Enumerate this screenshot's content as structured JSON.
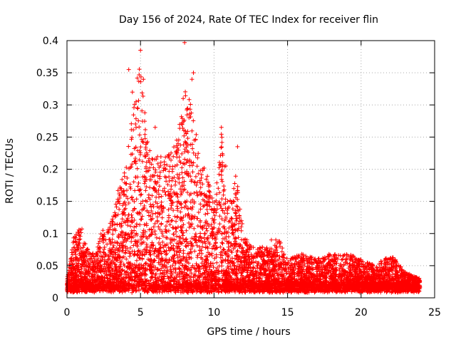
{
  "chart_data": {
    "type": "scatter",
    "title": "Day 156 of 2024, Rate Of TEC Index for receiver flin",
    "xlabel": "GPS time / hours",
    "ylabel": "ROTI / TECUs",
    "xlim": [
      0,
      25
    ],
    "ylim": [
      0,
      0.4
    ],
    "grid": true,
    "marker": "+",
    "color": "#ff0000",
    "x_ticks": [
      {
        "value": 0,
        "label": "0"
      },
      {
        "value": 5,
        "label": "5"
      },
      {
        "value": 10,
        "label": "10"
      },
      {
        "value": 15,
        "label": "15"
      },
      {
        "value": 20,
        "label": "20"
      },
      {
        "value": 25,
        "label": "25"
      }
    ],
    "y_ticks": [
      {
        "value": 0,
        "label": "0"
      },
      {
        "value": 0.05,
        "label": "0.05"
      },
      {
        "value": 0.1,
        "label": "0.1"
      },
      {
        "value": 0.15,
        "label": "0.15"
      },
      {
        "value": 0.2,
        "label": "0.2"
      },
      {
        "value": 0.25,
        "label": "0.25"
      },
      {
        "value": 0.3,
        "label": "0.3"
      },
      {
        "value": 0.35,
        "label": "0.35"
      },
      {
        "value": 0.4,
        "label": "0.4"
      }
    ],
    "series": [
      {
        "name": "ROTI",
        "envelope": [
          [
            0,
            0.035
          ],
          [
            0.5,
            0.1
          ],
          [
            1,
            0.11
          ],
          [
            1.5,
            0.07
          ],
          [
            2,
            0.07
          ],
          [
            2.5,
            0.12
          ],
          [
            3,
            0.12
          ],
          [
            3.5,
            0.17
          ],
          [
            4,
            0.2
          ],
          [
            4.5,
            0.3
          ],
          [
            5,
            0.38
          ],
          [
            5.5,
            0.25
          ],
          [
            6,
            0.22
          ],
          [
            6.5,
            0.22
          ],
          [
            7,
            0.23
          ],
          [
            7.5,
            0.25
          ],
          [
            8,
            0.33
          ],
          [
            8.5,
            0.3
          ],
          [
            9,
            0.22
          ],
          [
            9.5,
            0.2
          ],
          [
            10,
            0.14
          ],
          [
            10.5,
            0.26
          ],
          [
            11,
            0.14
          ],
          [
            11.5,
            0.2
          ],
          [
            12,
            0.1
          ],
          [
            12.5,
            0.08
          ],
          [
            13,
            0.08
          ],
          [
            13.5,
            0.08
          ],
          [
            14,
            0.08
          ],
          [
            14.5,
            0.09
          ],
          [
            15,
            0.06
          ],
          [
            16,
            0.07
          ],
          [
            17,
            0.06
          ],
          [
            18,
            0.07
          ],
          [
            19,
            0.07
          ],
          [
            20,
            0.06
          ],
          [
            21,
            0.05
          ],
          [
            22,
            0.07
          ],
          [
            23,
            0.04
          ],
          [
            24,
            0.03
          ]
        ],
        "outliers": [
          [
            5,
            0.385
          ],
          [
            8,
            0.397
          ],
          [
            8.6,
            0.35
          ],
          [
            4.2,
            0.355
          ],
          [
            4.45,
            0.32
          ],
          [
            5.2,
            0.34
          ],
          [
            8.5,
            0.34
          ],
          [
            7.9,
            0.31
          ],
          [
            10.5,
            0.265
          ],
          [
            11.6,
            0.235
          ],
          [
            10.8,
            0.205
          ],
          [
            6.0,
            0.265
          ],
          [
            8.3,
            0.28
          ],
          [
            4.7,
            0.305
          ],
          [
            12.0,
            0.09
          ],
          [
            13.9,
            0.09
          ],
          [
            14.2,
            0.09
          ],
          [
            3.7,
            0.17
          ]
        ]
      }
    ]
  }
}
